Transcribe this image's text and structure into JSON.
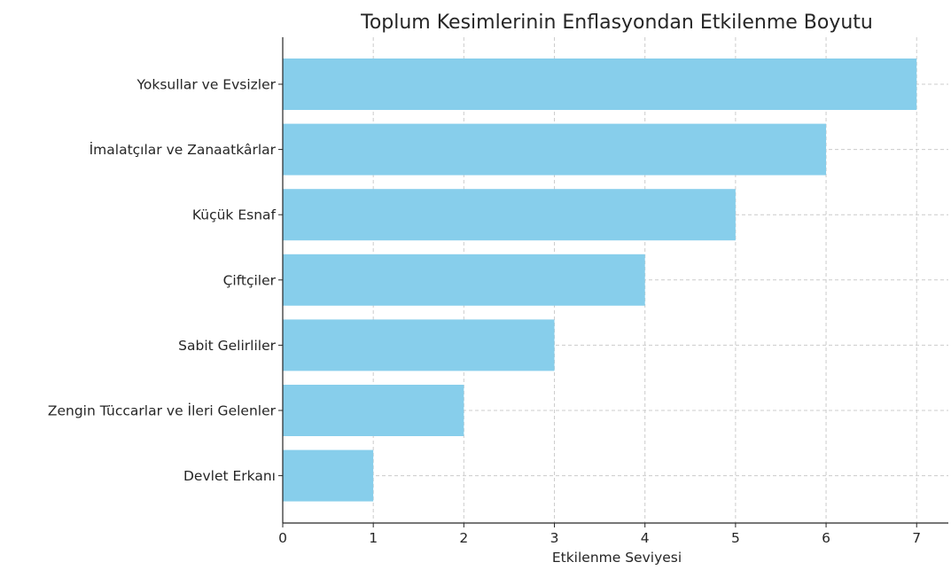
{
  "chart_data": {
    "type": "bar",
    "orientation": "horizontal",
    "title": "Toplum Kesimlerinin Enflasyondan Etkilenme Boyutu",
    "xlabel": "Etkilenme Seviyesi",
    "ylabel": "",
    "categories": [
      "Yoksullar ve Evsizler",
      "İmalatçılar ve Zanaatkârlar",
      "Küçük Esnaf",
      "Çiftçiler",
      "Sabit Gelirliler",
      "Zengin Tüccarlar ve İleri Gelenler",
      "Devlet Erkanı"
    ],
    "values": [
      7,
      6,
      5,
      4,
      3,
      2,
      1
    ],
    "xlim": [
      0,
      7.35
    ],
    "xticks": [
      0,
      1,
      2,
      3,
      4,
      5,
      6,
      7
    ],
    "grid": true,
    "bar_color": "#87CEEB",
    "grid_color": "#cccccc",
    "axis_color": "#262626"
  }
}
